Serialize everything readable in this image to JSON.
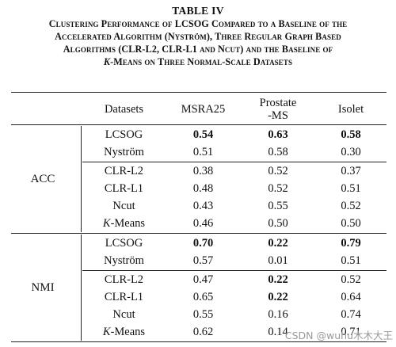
{
  "table_label": "TABLE IV",
  "caption_lines": [
    "Clustering Performance of LCSOG Compared to a Baseline of the",
    "Accelerated Algorithm (Nyström), Three Regular Graph Based",
    "Algorithms (CLR-L2, CLR-L1 and Ncut) and the Baseline of"
  ],
  "caption_last_italic": "K",
  "caption_last_rest": "-Means on Three Normal-Scale Datasets",
  "columns": [
    "Datasets",
    "MSRA25",
    "Prostate\n-MS",
    "Isolet"
  ],
  "column_header_prostate_line1": "Prostate",
  "column_header_prostate_line2": "-MS",
  "groups": [
    {
      "metric": "ACC",
      "rows": [
        {
          "method": "LCSOG",
          "values": [
            "0.54",
            "0.63",
            "0.58"
          ],
          "bold": [
            true,
            true,
            true
          ]
        },
        {
          "method": "Nyström",
          "values": [
            "0.51",
            "0.58",
            "0.30"
          ],
          "bold": [
            false,
            false,
            false
          ]
        },
        {
          "method": "CLR-L2",
          "values": [
            "0.38",
            "0.52",
            "0.37"
          ],
          "bold": [
            false,
            false,
            false
          ]
        },
        {
          "method": "CLR-L1",
          "values": [
            "0.48",
            "0.52",
            "0.51"
          ],
          "bold": [
            false,
            false,
            false
          ]
        },
        {
          "method": "Ncut",
          "values": [
            "0.43",
            "0.55",
            "0.52"
          ],
          "bold": [
            false,
            false,
            false
          ]
        },
        {
          "method_italic": "K",
          "method_rest": "-Means",
          "values": [
            "0.46",
            "0.50",
            "0.50"
          ],
          "bold": [
            false,
            false,
            false
          ]
        }
      ]
    },
    {
      "metric": "NMI",
      "rows": [
        {
          "method": "LCSOG",
          "values": [
            "0.70",
            "0.22",
            "0.79"
          ],
          "bold": [
            true,
            true,
            true
          ]
        },
        {
          "method": "Nyström",
          "values": [
            "0.57",
            "0.01",
            "0.51"
          ],
          "bold": [
            false,
            false,
            false
          ]
        },
        {
          "method": "CLR-L2",
          "values": [
            "0.47",
            "0.22",
            "0.52"
          ],
          "bold": [
            false,
            true,
            false
          ]
        },
        {
          "method": "CLR-L1",
          "values": [
            "0.65",
            "0.22",
            "0.64"
          ],
          "bold": [
            false,
            true,
            false
          ]
        },
        {
          "method": "Ncut",
          "values": [
            "0.55",
            "0.16",
            "0.74"
          ],
          "bold": [
            false,
            false,
            false
          ]
        },
        {
          "method_italic": "K",
          "method_rest": "-Means",
          "values": [
            "0.62",
            "0.14",
            "0.71"
          ],
          "bold": [
            false,
            false,
            false
          ]
        }
      ]
    }
  ],
  "watermark": "CSDN @wuhu木木大王"
}
